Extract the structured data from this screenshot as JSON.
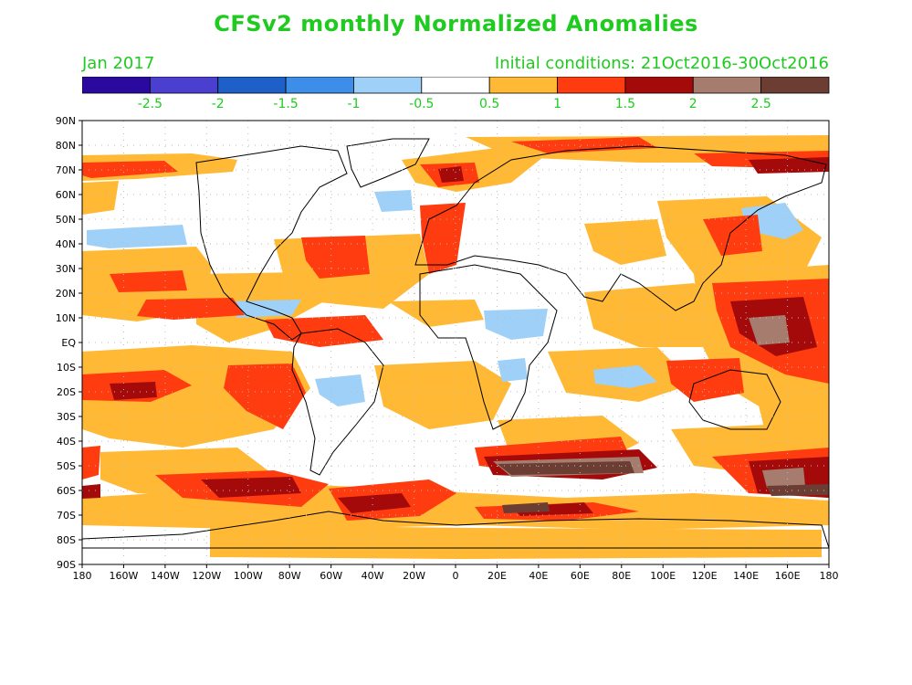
{
  "title": "CFSv2 monthly Normalized Anomalies",
  "month_label": "Jan 2017",
  "init_label": "Initial conditions: 21Oct2016-30Oct2016",
  "text_color": "#1ecb1e",
  "colorbar": {
    "colors": [
      "#2a0a9e",
      "#4a3fcf",
      "#1f5fc8",
      "#3c8ee8",
      "#9fd0f7",
      "#ffffff",
      "#ffb935",
      "#ff3c0f",
      "#a50a0a",
      "#a67c6e",
      "#6b3d33"
    ],
    "labels": [
      "-2.5",
      "-2",
      "-1.5",
      "-1",
      "-0.5",
      "0.5",
      "1",
      "1.5",
      "2",
      "2.5"
    ]
  },
  "map": {
    "lat_labels": [
      "90N",
      "80N",
      "70N",
      "60N",
      "50N",
      "40N",
      "30N",
      "20N",
      "10N",
      "EQ",
      "10S",
      "20S",
      "30S",
      "40S",
      "50S",
      "60S",
      "70S",
      "80S",
      "90S"
    ],
    "lon_labels": [
      "180",
      "160W",
      "140W",
      "120W",
      "100W",
      "80W",
      "60W",
      "40W",
      "20W",
      "0",
      "20E",
      "40E",
      "60E",
      "80E",
      "100E",
      "120E",
      "140E",
      "160E",
      "180"
    ]
  }
}
